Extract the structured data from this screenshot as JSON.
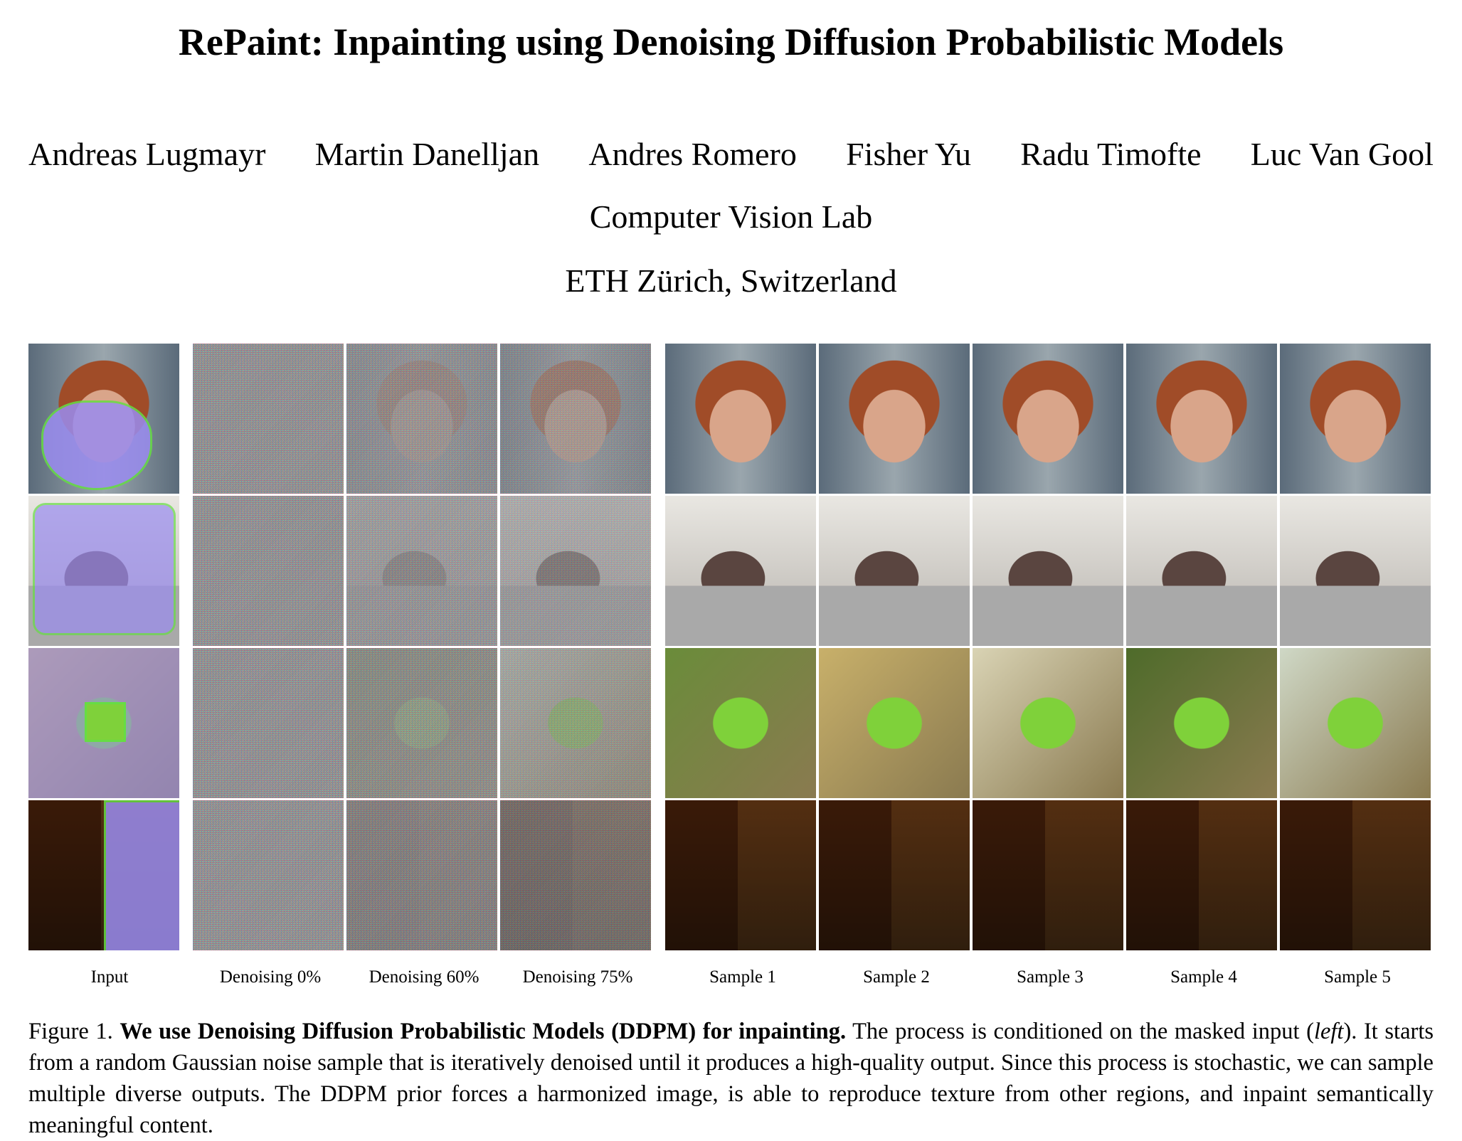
{
  "title": "RePaint: Inpainting using Denoising Diffusion Probabilistic Models",
  "authors": [
    "Andreas Lugmayr",
    "Martin Danelljan",
    "Andres Romero",
    "Fisher Yu",
    "Radu Timofte",
    "Luc Van Gool"
  ],
  "affiliation": [
    "Computer Vision Lab",
    "ETH Zürich, Switzerland"
  ],
  "figure": {
    "columns": [
      "Input",
      "Denoising 0%",
      "Denoising 60%",
      "Denoising 75%",
      "Sample 1",
      "Sample 2",
      "Sample 3",
      "Sample 4",
      "Sample 5"
    ],
    "rows": [
      "face",
      "lab-equipment",
      "green-object",
      "shed-doorway"
    ],
    "colors": {
      "mask": "#9a8cf0",
      "mask_edge": "#66dd44",
      "face": "#d9a58a",
      "hair": "#a04c28",
      "lab": "#b7b3ad",
      "green": "#7fd13a",
      "sand": "#c9a860",
      "shed": "#8a5a33"
    }
  },
  "caption": {
    "label": "Figure 1.",
    "bold": "We use Denoising Diffusion Probabilistic Models (DDPM) for inpainting.",
    "text1": " The process is conditioned on the masked input (",
    "italic": "left",
    "text2": "). It starts from a random Gaussian noise sample that is iteratively denoised until it produces a high-quality output. Since this process is stochastic, we can sample multiple diverse outputs. The DDPM prior forces a harmonized image, is able to reproduce texture from other regions, and inpaint semantically meaningful content."
  }
}
